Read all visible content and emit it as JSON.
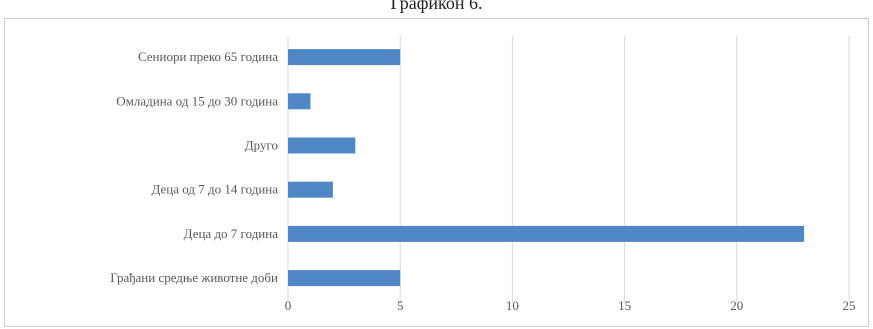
{
  "page": {
    "title": "Графикон 6."
  },
  "chart_data": {
    "type": "bar",
    "orientation": "horizontal",
    "title": "",
    "xlabel": "",
    "ylabel": "",
    "categories": [
      "Сениори преко 65 година",
      "Омладина од 15 до 30 година",
      "Друго",
      "Деца од 7 до 14 година",
      "Деца до 7 година",
      "Грађани средње животне доби"
    ],
    "values": [
      5,
      1,
      3,
      2,
      23,
      5
    ],
    "xlim": [
      0,
      25
    ],
    "xticks": [
      "0",
      "5",
      "10",
      "15",
      "20",
      "25"
    ],
    "grid": "vertical",
    "legend": "none",
    "colors": {
      "bar": "#4f86c4",
      "grid": "#d9d9d9"
    }
  }
}
